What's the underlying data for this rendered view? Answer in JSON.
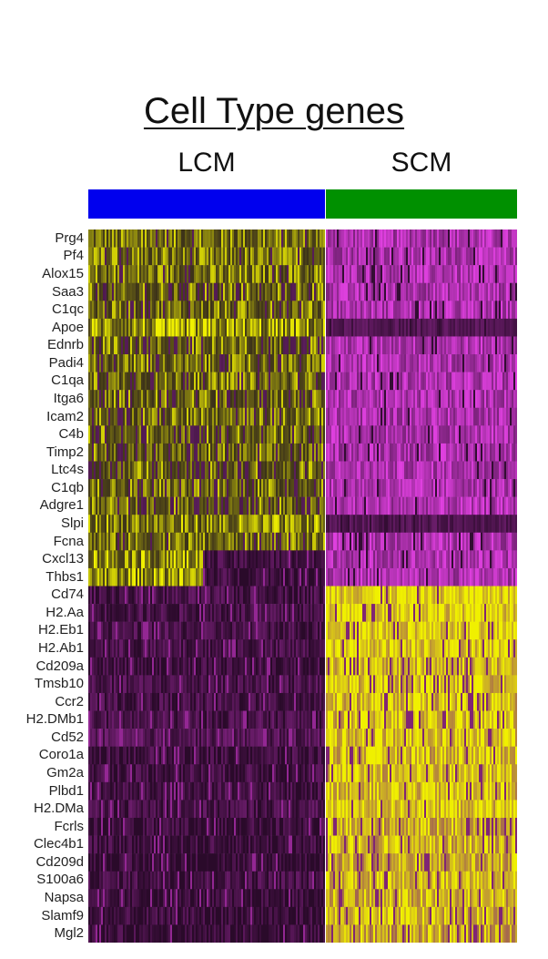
{
  "chart_data": {
    "type": "heatmap",
    "title": "Cell Type genes",
    "groups": [
      {
        "name": "LCM",
        "color": "#0000ee"
      },
      {
        "name": "SCM",
        "color": "#009000"
      }
    ],
    "colormap": {
      "low": "#2a0a2a",
      "mid": "#7a1a7a",
      "high": "#f0f000",
      "scm_high_purple": "#e040e0"
    },
    "genes": [
      {
        "name": "Prg4",
        "lcm": 0.72,
        "scm": 0.1
      },
      {
        "name": "Pf4",
        "lcm": 0.7,
        "scm": 0.05
      },
      {
        "name": "Alox15",
        "lcm": 0.72,
        "scm": 0.1
      },
      {
        "name": "Saa3",
        "lcm": 0.62,
        "scm": 0.12
      },
      {
        "name": "C1qc",
        "lcm": 0.7,
        "scm": 0.12
      },
      {
        "name": "Apoe",
        "lcm": 0.8,
        "scm": 0.02
      },
      {
        "name": "Ednrb",
        "lcm": 0.65,
        "scm": 0.14
      },
      {
        "name": "Padi4",
        "lcm": 0.68,
        "scm": 0.12
      },
      {
        "name": "C1qa",
        "lcm": 0.7,
        "scm": 0.12
      },
      {
        "name": "Itga6",
        "lcm": 0.66,
        "scm": 0.1
      },
      {
        "name": "Icam2",
        "lcm": 0.68,
        "scm": 0.1
      },
      {
        "name": "C4b",
        "lcm": 0.62,
        "scm": 0.12
      },
      {
        "name": "Timp2",
        "lcm": 0.64,
        "scm": 0.14
      },
      {
        "name": "Ltc4s",
        "lcm": 0.62,
        "scm": 0.12
      },
      {
        "name": "C1qb",
        "lcm": 0.68,
        "scm": 0.12
      },
      {
        "name": "Adgre1",
        "lcm": 0.62,
        "scm": 0.1
      },
      {
        "name": "Slpi",
        "lcm": 0.75,
        "scm": 0.04
      },
      {
        "name": "Fcna",
        "lcm": 0.7,
        "scm": 0.08
      },
      {
        "name": "Cxcl13",
        "lcm": 0.8,
        "scm": 0.06
      },
      {
        "name": "Thbs1",
        "lcm": 0.82,
        "scm": 0.06
      },
      {
        "name": "Cd74",
        "lcm": 0.2,
        "scm": 0.9
      },
      {
        "name": "H2.Aa",
        "lcm": 0.2,
        "scm": 0.9
      },
      {
        "name": "H2.Eb1",
        "lcm": 0.2,
        "scm": 0.88
      },
      {
        "name": "H2.Ab1",
        "lcm": 0.2,
        "scm": 0.88
      },
      {
        "name": "Cd209a",
        "lcm": 0.15,
        "scm": 0.75
      },
      {
        "name": "Tmsb10",
        "lcm": 0.22,
        "scm": 0.82
      },
      {
        "name": "Ccr2",
        "lcm": 0.18,
        "scm": 0.78
      },
      {
        "name": "H2.DMb1",
        "lcm": 0.22,
        "scm": 0.8
      },
      {
        "name": "Cd52",
        "lcm": 0.3,
        "scm": 0.82
      },
      {
        "name": "Coro1a",
        "lcm": 0.15,
        "scm": 0.78
      },
      {
        "name": "Gm2a",
        "lcm": 0.18,
        "scm": 0.78
      },
      {
        "name": "Plbd1",
        "lcm": 0.15,
        "scm": 0.8
      },
      {
        "name": "H2.DMa",
        "lcm": 0.22,
        "scm": 0.82
      },
      {
        "name": "Fcrls",
        "lcm": 0.1,
        "scm": 0.72
      },
      {
        "name": "Clec4b1",
        "lcm": 0.12,
        "scm": 0.74
      },
      {
        "name": "Cd209d",
        "lcm": 0.08,
        "scm": 0.66
      },
      {
        "name": "S100a6",
        "lcm": 0.2,
        "scm": 0.8
      },
      {
        "name": "Napsa",
        "lcm": 0.08,
        "scm": 0.7
      },
      {
        "name": "Slamf9",
        "lcm": 0.1,
        "scm": 0.74
      },
      {
        "name": "Mgl2",
        "lcm": 0.1,
        "scm": 0.66
      }
    ]
  }
}
